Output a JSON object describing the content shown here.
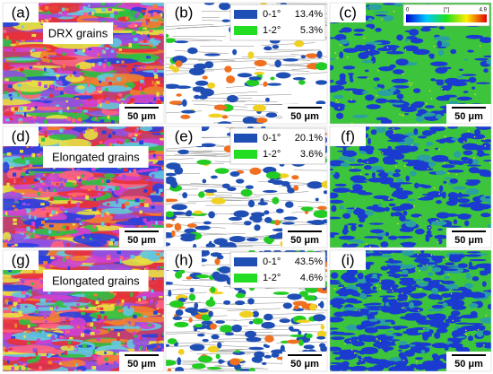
{
  "panels": [
    {
      "label": "(a)",
      "annotation": "DRX grains",
      "scale_bar": "50 μm"
    },
    {
      "label": "(b)",
      "legend": [
        {
          "range": "0-1°",
          "percent": "13.4%"
        },
        {
          "range": "1-2°",
          "percent": "5.3%"
        }
      ],
      "scale_bar": "50 μm"
    },
    {
      "label": "(c)",
      "colorbar": {
        "min": "0",
        "unit": "[°]",
        "max": "4.9"
      },
      "scale_bar": "50 μm"
    },
    {
      "label": "(d)",
      "annotation": "Elongated grains",
      "scale_bar": "50 μm"
    },
    {
      "label": "(e)",
      "legend": [
        {
          "range": "0-1°",
          "percent": "20.1%"
        },
        {
          "range": "1-2°",
          "percent": "3.6%"
        }
      ],
      "scale_bar": "50 μm"
    },
    {
      "label": "(f)",
      "scale_bar": "50 μm"
    },
    {
      "label": "(g)",
      "annotation": "Elongated grains",
      "scale_bar": "50 μm"
    },
    {
      "label": "(h)",
      "legend": [
        {
          "range": "0-1°",
          "percent": "43.5%"
        },
        {
          "range": "1-2°",
          "percent": "4.6%"
        }
      ],
      "scale_bar": "50 μm"
    },
    {
      "label": "(i)",
      "scale_bar": "50 μm"
    }
  ]
}
